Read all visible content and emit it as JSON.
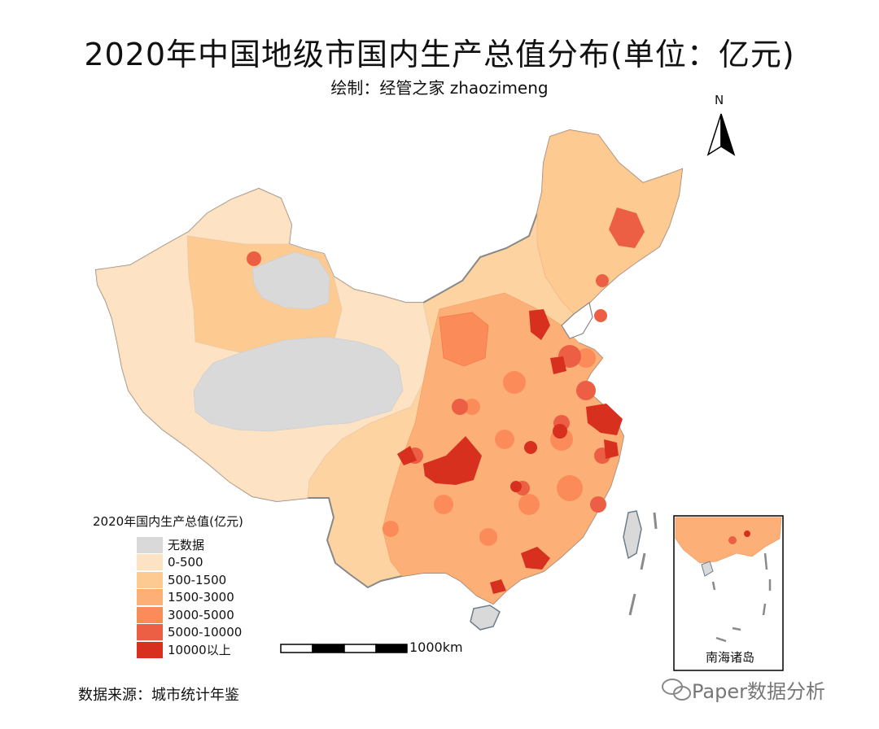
{
  "title": "2020年中国地级市国内生产总值分布(单位：亿元)",
  "subtitle": "绘制：经管之家 zhaozimeng",
  "north_label": "N",
  "legend": {
    "title": "2020年国内生产总值(亿元)",
    "items": [
      {
        "label": "无数据",
        "color": "#d9d9d9"
      },
      {
        "label": "0-500",
        "color": "#fde3c3"
      },
      {
        "label": "500-1500",
        "color": "#fdca92"
      },
      {
        "label": "1500-3000",
        "color": "#fcb077"
      },
      {
        "label": "3000-5000",
        "color": "#fb8c59"
      },
      {
        "label": "5000-10000",
        "color": "#ec5f44"
      },
      {
        "label": "10000以上",
        "color": "#d7301f"
      }
    ]
  },
  "scale_bar": {
    "label": "1000km"
  },
  "inset": {
    "label": "南海诸岛"
  },
  "source": "数据来源：城市统计年鉴",
  "watermark": "Paper数据分析"
}
